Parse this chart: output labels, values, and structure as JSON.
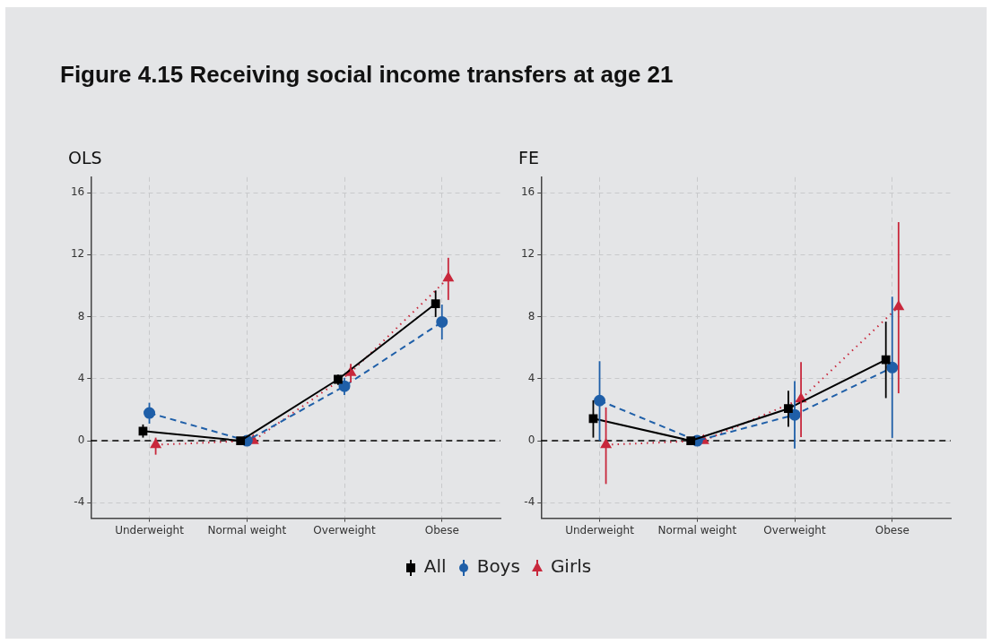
{
  "chart_data": [
    {
      "type": "line",
      "title": "OLS",
      "annotations": [
        "Figure 4.15 Receiving social income transfers at age 21"
      ],
      "categories": [
        "Underweight",
        "Normal weight",
        "Overweight",
        "Obese"
      ],
      "ylim": [
        -5,
        17
      ],
      "yticks": [
        -4,
        0,
        4,
        8,
        12,
        16
      ],
      "grid": true,
      "legend": "bottom",
      "ref_lines": [
        {
          "axis": "y",
          "value": 0,
          "color": "#000000",
          "line_style": "dashed"
        }
      ],
      "series": [
        {
          "name": "All",
          "color": "#000000",
          "marker": "square",
          "line_style": "solid",
          "values": [
            0.62,
            0,
            3.96,
            8.84
          ],
          "errors": [
            [
              0.2,
              1.05
            ],
            null,
            [
              3.6,
              4.26
            ],
            [
              7.98,
              9.69
            ]
          ]
        },
        {
          "name": "Boys",
          "color": "#1f5fa8",
          "marker": "circle",
          "line_style": "dashed",
          "values": [
            1.79,
            0,
            3.52,
            7.66
          ],
          "errors": [
            [
              1.1,
              2.45
            ],
            null,
            [
              2.95,
              4.06
            ],
            [
              6.53,
              8.78
            ]
          ]
        },
        {
          "name": "Girls",
          "color": "#c8283c",
          "marker": "triangle",
          "line_style": "dotted",
          "values": [
            -0.26,
            0,
            4.4,
            10.49
          ],
          "errors": [
            [
              -0.9,
              0.2
            ],
            null,
            [
              3.76,
              4.96
            ],
            [
              9.08,
              11.8
            ]
          ]
        }
      ]
    },
    {
      "type": "line",
      "title": "FE",
      "categories": [
        "Underweight",
        "Normal weight",
        "Overweight",
        "Obese"
      ],
      "ylim": [
        -5,
        17
      ],
      "yticks": [
        -4,
        0,
        4,
        8,
        12,
        16
      ],
      "grid": true,
      "legend": "bottom",
      "ref_lines": [
        {
          "axis": "y",
          "value": 0,
          "color": "#000000",
          "line_style": "dashed"
        }
      ],
      "series": [
        {
          "name": "All",
          "color": "#000000",
          "marker": "square",
          "line_style": "solid",
          "values": [
            1.43,
            0,
            2.07,
            5.23
          ],
          "errors": [
            [
              0.2,
              2.61
            ],
            null,
            [
              0.9,
              3.22
            ],
            [
              2.75,
              7.68
            ]
          ]
        },
        {
          "name": "Boys",
          "color": "#1f5fa8",
          "marker": "circle",
          "line_style": "dashed",
          "values": [
            2.59,
            0,
            1.67,
            4.72
          ],
          "errors": [
            [
              0,
              5.13
            ],
            null,
            [
              -0.5,
              3.84
            ],
            [
              0.18,
              9.29
            ]
          ]
        },
        {
          "name": "Girls",
          "color": "#c8283c",
          "marker": "triangle",
          "line_style": "dotted",
          "values": [
            -0.26,
            0,
            2.69,
            8.64
          ],
          "errors": [
            [
              -2.79,
              2.15
            ],
            null,
            [
              0.24,
              5.07
            ],
            [
              3.06,
              14.1
            ]
          ]
        }
      ]
    }
  ]
}
